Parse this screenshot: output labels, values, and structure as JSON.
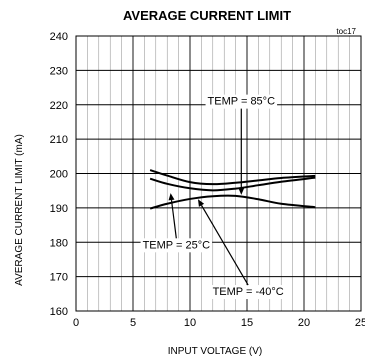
{
  "chart_data": {
    "type": "line",
    "title": "AVERAGE CURRENT LIMIT",
    "tag": "toc17",
    "xlabel": "INPUT VOLTAGE (V)",
    "ylabel": "AVERAGE CURRENT LIMIT (mA)",
    "xlim": [
      0,
      25
    ],
    "ylim": [
      160,
      240
    ],
    "x_ticks": [
      "0",
      "5",
      "10",
      "15",
      "20",
      "25"
    ],
    "y_ticks": [
      "160",
      "170",
      "180",
      "190",
      "200",
      "210",
      "220",
      "230",
      "240"
    ],
    "grid": true,
    "series": [
      {
        "name": "TEMP = 85°C",
        "x": [
          6.5,
          8,
          10,
          12,
          14,
          16,
          18,
          21
        ],
        "y": [
          201.0,
          199.4,
          197.5,
          196.9,
          197.3,
          198.0,
          198.7,
          199.3
        ]
      },
      {
        "name": "TEMP = 25°C",
        "x": [
          6.5,
          8,
          10,
          12,
          14,
          16,
          18,
          21
        ],
        "y": [
          198.5,
          197.0,
          195.7,
          195.1,
          195.6,
          196.6,
          197.6,
          198.8
        ]
      },
      {
        "name": "TEMP = -40°C",
        "x": [
          6.5,
          8,
          10,
          12,
          14,
          16,
          18,
          21
        ],
        "y": [
          189.8,
          191.2,
          192.6,
          193.4,
          193.5,
          192.5,
          191.2,
          190.2
        ]
      }
    ],
    "annotations": [
      {
        "text": "TEMP = 85°C",
        "label_at": [
          14.5,
          221.2
        ],
        "arrow_to": [
          14.5,
          193.8
        ]
      },
      {
        "text": "TEMP = 25°C",
        "label_at": [
          8.8,
          179.4
        ],
        "arrow_to": [
          8.3,
          194.3
        ]
      },
      {
        "text": "TEMP = -40°C",
        "label_at": [
          15.1,
          165.8
        ],
        "arrow_to": [
          10.7,
          192.5
        ]
      }
    ]
  }
}
